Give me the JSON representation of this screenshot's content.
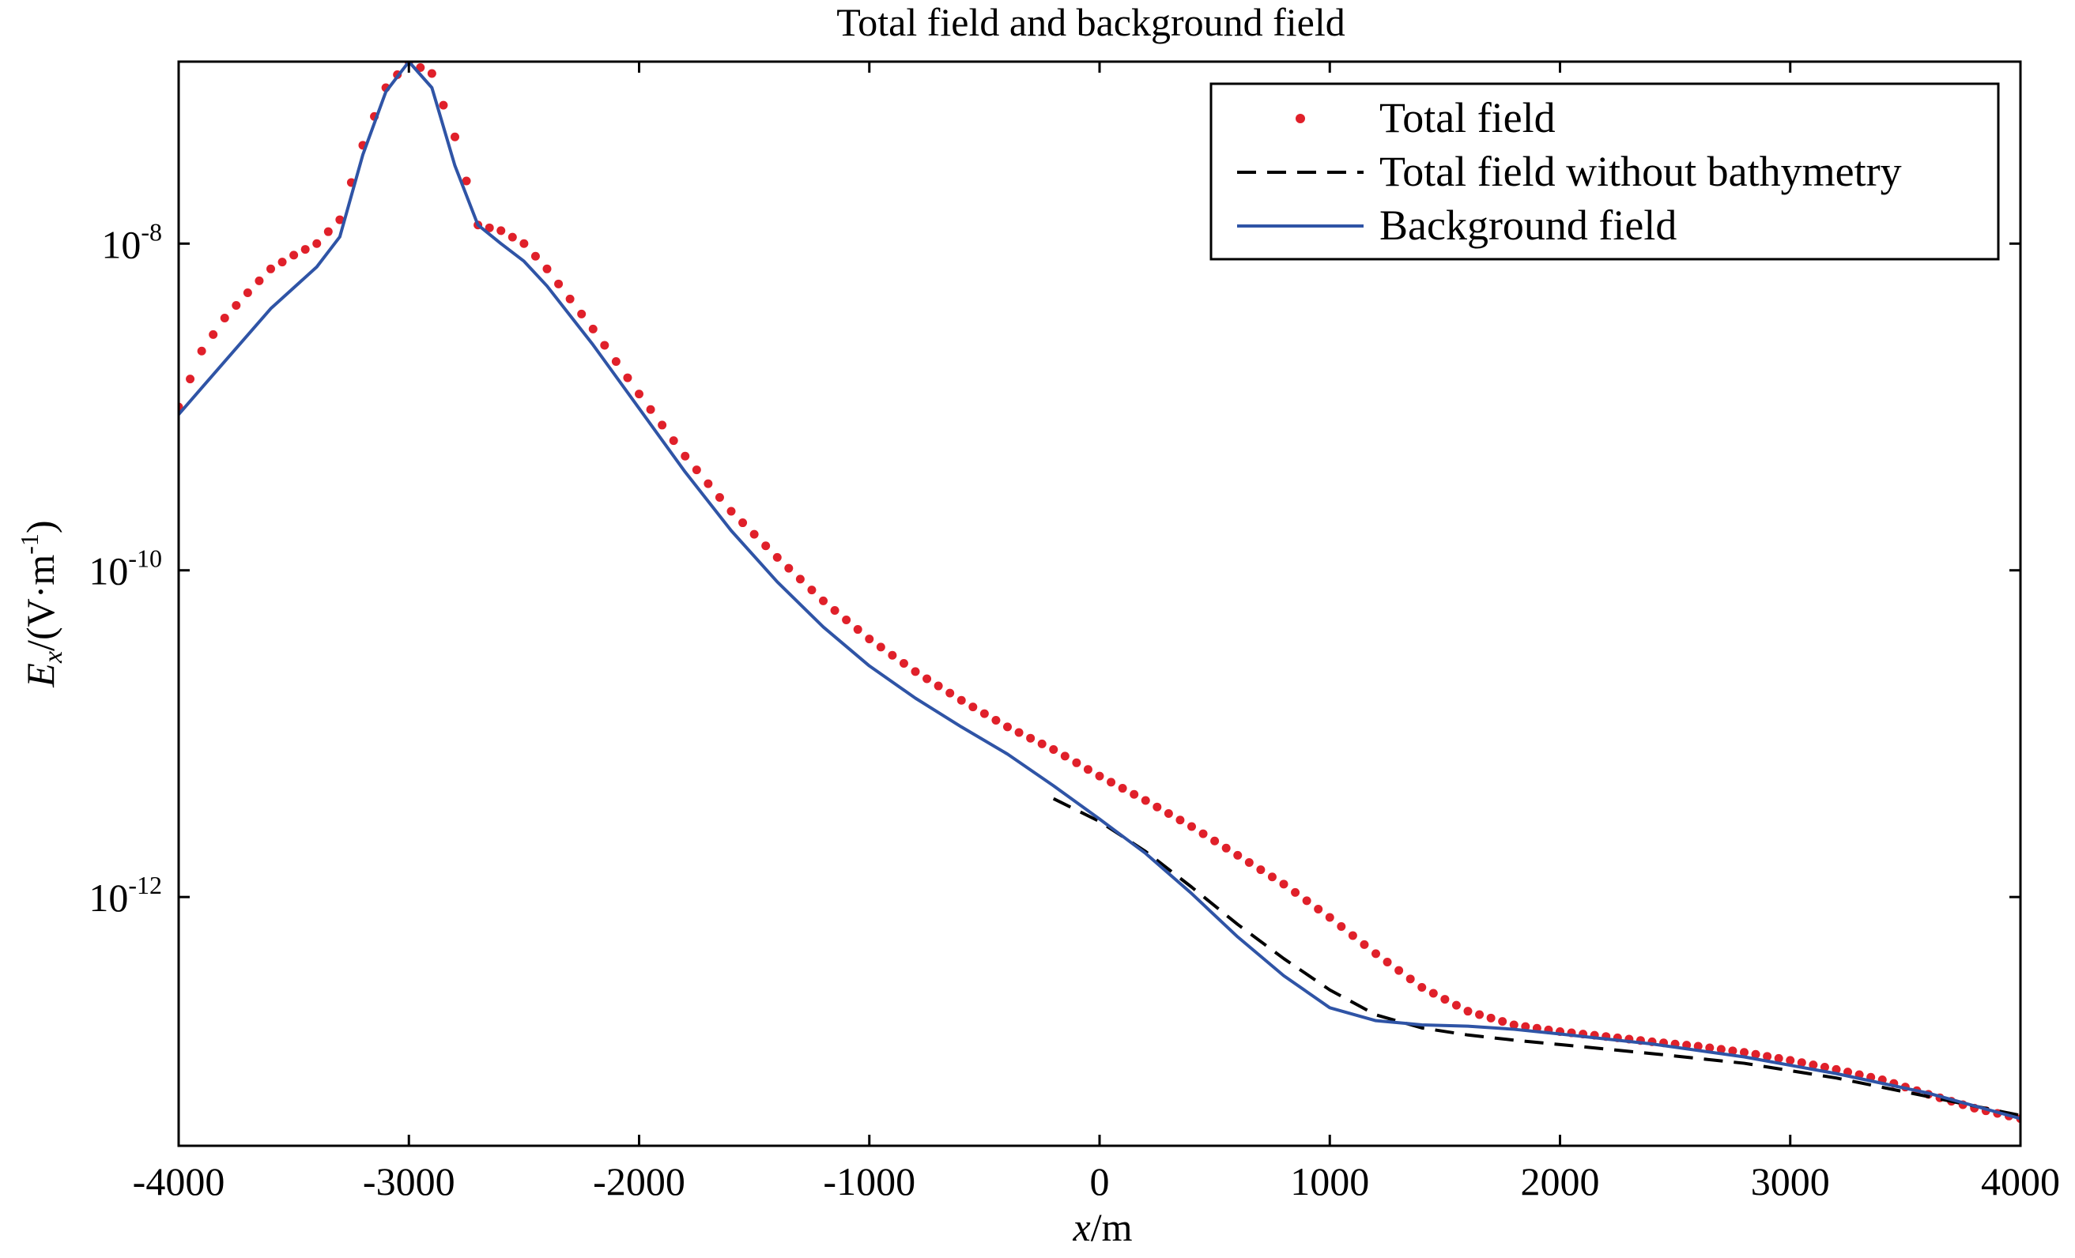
{
  "chart_data": {
    "type": "line",
    "title": "Total field and background field",
    "xlabel": "x/m",
    "ylabel": "Ex/(V·m-1)",
    "xlabel_parts": {
      "var": "x",
      "unit": "/m"
    },
    "ylabel_parts": {
      "var": "E",
      "sub": "x",
      "unit_open": "/(V·m",
      "unit_sup": "-1",
      "unit_close": ")"
    },
    "xlim": [
      -4000,
      4000
    ],
    "ylim": [
      3e-14,
      1.3e-07
    ],
    "yscale": "log",
    "x_ticks": [
      -4000,
      -3000,
      -2000,
      -1000,
      0,
      1000,
      2000,
      3000,
      4000
    ],
    "x_tick_labels": [
      "-4000",
      "-3000",
      "-2000",
      "-1000",
      "0",
      "1000",
      "2000",
      "3000",
      "4000"
    ],
    "y_ticks": [
      1e-08,
      1e-10,
      1e-12
    ],
    "y_tick_labels": [
      {
        "base": "10",
        "exp": "-8"
      },
      {
        "base": "10",
        "exp": "-10"
      },
      {
        "base": "10",
        "exp": "-12"
      }
    ],
    "grid": false,
    "legend_position": "top-right",
    "series": [
      {
        "name": "Total field",
        "style": "dotted-markers",
        "color": "#e0202a",
        "points": [
          [
            -4000,
            1e-09
          ],
          [
            -3900,
            2.2e-09
          ],
          [
            -3800,
            3.5e-09
          ],
          [
            -3700,
            5e-09
          ],
          [
            -3600,
            7e-09
          ],
          [
            -3500,
            8.5e-09
          ],
          [
            -3400,
            1e-08
          ],
          [
            -3300,
            1.4e-08
          ],
          [
            -3200,
            4e-08
          ],
          [
            -3100,
            9e-08
          ],
          [
            -3000,
            1.3e-07
          ],
          [
            -2900,
            1.1e-07
          ],
          [
            -2800,
            4.5e-08
          ],
          [
            -2700,
            1.3e-08
          ],
          [
            -2600,
            1.2e-08
          ],
          [
            -2500,
            1e-08
          ],
          [
            -2400,
            7e-09
          ],
          [
            -2200,
            3e-09
          ],
          [
            -2000,
            1.2e-09
          ],
          [
            -1800,
            5e-10
          ],
          [
            -1600,
            2.3e-10
          ],
          [
            -1400,
            1.2e-10
          ],
          [
            -1200,
            6.5e-11
          ],
          [
            -1000,
            3.8e-11
          ],
          [
            -800,
            2.4e-11
          ],
          [
            -600,
            1.6e-11
          ],
          [
            -400,
            1.1e-11
          ],
          [
            -200,
            8e-12
          ],
          [
            0,
            5.5e-12
          ],
          [
            200,
            3.9e-12
          ],
          [
            400,
            2.7e-12
          ],
          [
            600,
            1.8e-12
          ],
          [
            800,
            1.2e-12
          ],
          [
            1000,
            7.5e-13
          ],
          [
            1200,
            4.5e-13
          ],
          [
            1400,
            2.8e-13
          ],
          [
            1600,
            2e-13
          ],
          [
            1800,
            1.65e-13
          ],
          [
            2000,
            1.5e-13
          ],
          [
            2200,
            1.4e-13
          ],
          [
            2400,
            1.3e-13
          ],
          [
            2600,
            1.22e-13
          ],
          [
            2800,
            1.12e-13
          ],
          [
            3000,
            1e-13
          ],
          [
            3200,
            8.8e-14
          ],
          [
            3400,
            7.6e-14
          ],
          [
            3600,
            6.2e-14
          ],
          [
            3800,
            5.1e-14
          ],
          [
            4000,
            4.4e-14
          ]
        ]
      },
      {
        "name": "Total field without bathymetry",
        "style": "dashed",
        "color": "#000000",
        "points": [
          [
            -200,
            4e-12
          ],
          [
            0,
            2.9e-12
          ],
          [
            200,
            1.9e-12
          ],
          [
            400,
            1.15e-12
          ],
          [
            600,
            6.8e-13
          ],
          [
            800,
            4.2e-13
          ],
          [
            1000,
            2.7e-13
          ],
          [
            1200,
            1.9e-13
          ],
          [
            1400,
            1.58e-13
          ],
          [
            1600,
            1.43e-13
          ],
          [
            1800,
            1.33e-13
          ],
          [
            2000,
            1.25e-13
          ],
          [
            2400,
            1.1e-13
          ],
          [
            2800,
            9.6e-14
          ],
          [
            3200,
            7.8e-14
          ],
          [
            3600,
            6e-14
          ],
          [
            4000,
            4.6e-14
          ]
        ]
      },
      {
        "name": "Background field",
        "style": "solid",
        "color": "#2f54a6",
        "points": [
          [
            -4000,
            9e-10
          ],
          [
            -3800,
            1.9e-09
          ],
          [
            -3600,
            4e-09
          ],
          [
            -3400,
            7.2e-09
          ],
          [
            -3300,
            1.1e-08
          ],
          [
            -3200,
            3.5e-08
          ],
          [
            -3100,
            8.5e-08
          ],
          [
            -3000,
            1.3e-07
          ],
          [
            -2900,
            9e-08
          ],
          [
            -2800,
            3e-08
          ],
          [
            -2700,
            1.3e-08
          ],
          [
            -2600,
            1e-08
          ],
          [
            -2500,
            7.8e-09
          ],
          [
            -2400,
            5.5e-09
          ],
          [
            -2200,
            2.4e-09
          ],
          [
            -2000,
            9.8e-10
          ],
          [
            -1800,
            4e-10
          ],
          [
            -1600,
            1.75e-10
          ],
          [
            -1400,
            8.5e-11
          ],
          [
            -1200,
            4.5e-11
          ],
          [
            -1000,
            2.6e-11
          ],
          [
            -800,
            1.65e-11
          ],
          [
            -600,
            1.1e-11
          ],
          [
            -400,
            7.5e-12
          ],
          [
            -200,
            4.8e-12
          ],
          [
            0,
            3e-12
          ],
          [
            200,
            1.85e-12
          ],
          [
            400,
            1.05e-12
          ],
          [
            600,
            5.7e-13
          ],
          [
            800,
            3.3e-13
          ],
          [
            1000,
            2.1e-13
          ],
          [
            1200,
            1.75e-13
          ],
          [
            1400,
            1.65e-13
          ],
          [
            1600,
            1.62e-13
          ],
          [
            1800,
            1.55e-13
          ],
          [
            2000,
            1.45e-13
          ],
          [
            2400,
            1.26e-13
          ],
          [
            2800,
            1.05e-13
          ],
          [
            3200,
            8.3e-14
          ],
          [
            3600,
            6.3e-14
          ],
          [
            4000,
            4.4e-14
          ]
        ]
      }
    ]
  }
}
